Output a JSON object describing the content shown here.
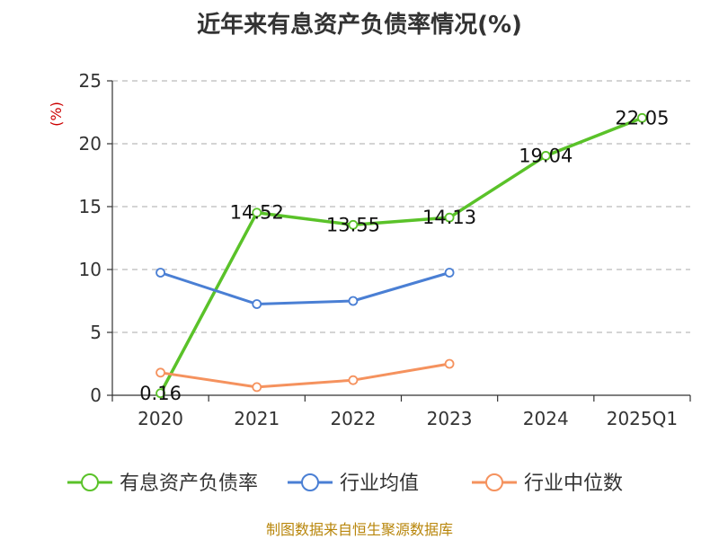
{
  "chart_data": {
    "type": "line",
    "title": "近年来有息资产负债率情况(%)",
    "unit_label": "(%)",
    "categories": [
      "2020",
      "2021",
      "2022",
      "2023",
      "2024",
      "2025Q1"
    ],
    "ylim": [
      0,
      25
    ],
    "yticks": [
      0,
      5,
      10,
      15,
      20,
      25
    ],
    "grid": true,
    "legend_position": "bottom",
    "series": [
      {
        "name": "有息资产负债率",
        "color": "#5ac229",
        "values": [
          0.16,
          14.52,
          13.55,
          14.13,
          19.04,
          22.05
        ],
        "labels": [
          "0.16",
          "14.52",
          "13.55",
          "14.13",
          "19.04",
          "22.05"
        ]
      },
      {
        "name": "行业均值",
        "color": "#4a7fd4",
        "values": [
          9.75,
          7.25,
          7.5,
          9.75,
          null,
          null
        ]
      },
      {
        "name": "行业中位数",
        "color": "#f5925e",
        "values": [
          1.8,
          0.65,
          1.2,
          2.5,
          null,
          null
        ]
      }
    ]
  },
  "footer": {
    "source": "制图数据来自恒生聚源数据库"
  }
}
